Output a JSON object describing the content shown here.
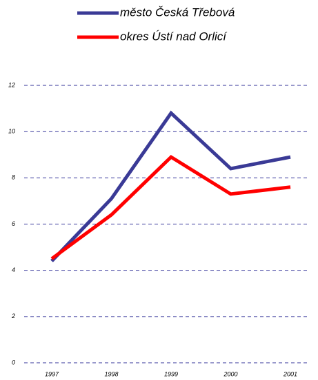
{
  "chart_data": {
    "type": "line",
    "categories": [
      "1997",
      "1998",
      "1999",
      "2000",
      "2001"
    ],
    "series": [
      {
        "name": "město Česká Třebová",
        "color": "#3a3a96",
        "values": [
          4.4,
          7.1,
          10.8,
          8.4,
          8.9
        ]
      },
      {
        "name": "okres Ústí nad Orlicí",
        "color": "#ff0000",
        "values": [
          4.5,
          6.4,
          8.9,
          7.3,
          7.6
        ]
      }
    ],
    "ylim": [
      0,
      12
    ],
    "yticks": [
      0,
      2,
      4,
      6,
      8,
      10,
      12
    ],
    "grid": true
  }
}
